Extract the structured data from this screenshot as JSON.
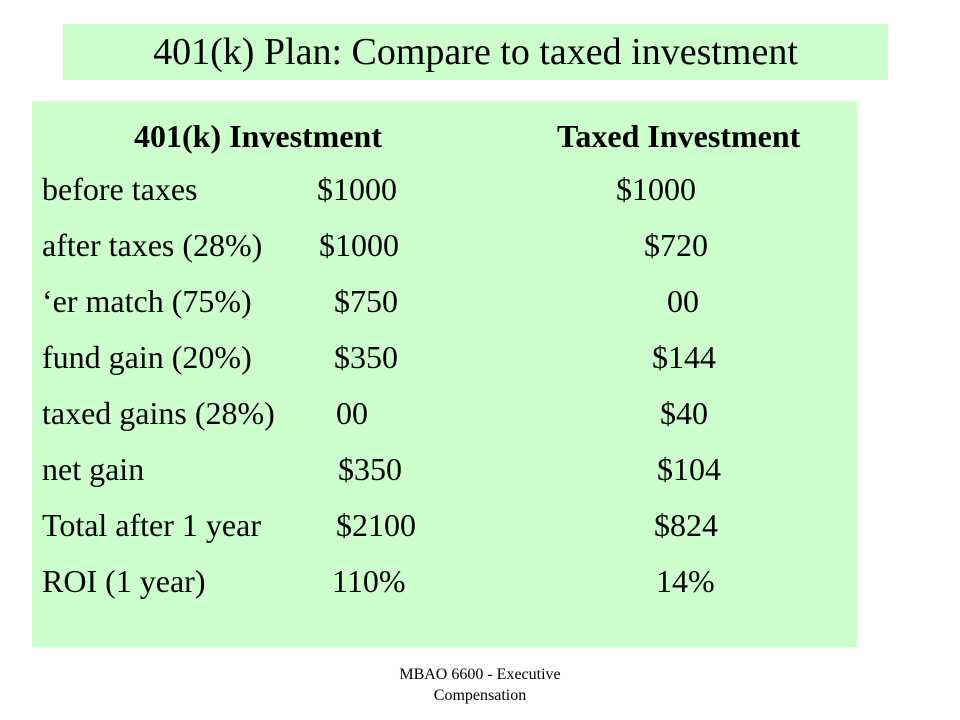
{
  "title": "401(k) Plan: Compare to taxed investment",
  "table": {
    "headers": [
      "401(k) Investment",
      "Taxed Investment"
    ],
    "rows": [
      {
        "label": "before taxes",
        "k401": "$1000",
        "taxed": "$1000"
      },
      {
        "label": "after taxes (28%)",
        "k401": "$1000",
        "taxed": "$720"
      },
      {
        "label": "‘er match (75%)",
        "k401": "$750",
        "taxed": "00"
      },
      {
        "label": "fund gain (20%)",
        "k401": "$350",
        "taxed": "$144"
      },
      {
        "label": "taxed gains (28%)",
        "k401": "00",
        "taxed": "$40"
      },
      {
        "label": "net gain",
        "k401": "$350",
        "taxed": "$104"
      },
      {
        "label": "Total after 1 year",
        "k401": "$2100",
        "taxed": "$824"
      },
      {
        "label": "ROI (1 year)",
        "k401": "110%",
        "taxed": "14%"
      }
    ]
  },
  "footer": {
    "line1": "MBAO 6600 - Executive",
    "line2": "Compensation"
  },
  "colors": {
    "panel_background": "#ccffcc",
    "page_background": "#ffffff",
    "text": "#000000"
  }
}
